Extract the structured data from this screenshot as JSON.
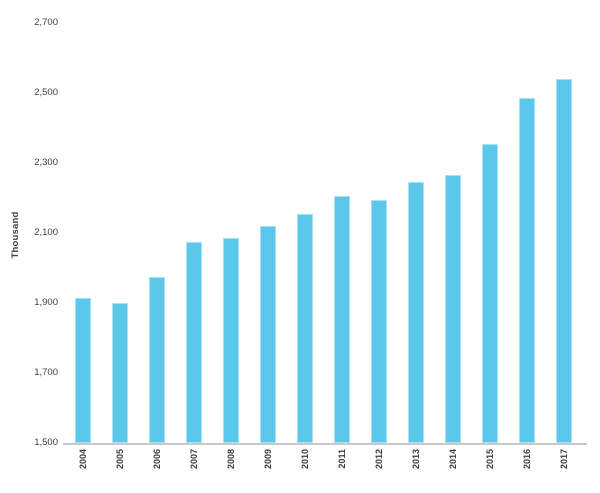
{
  "chart_data": {
    "type": "bar",
    "title": "",
    "xlabel": "",
    "ylabel": "Thousand",
    "categories": [
      "2004",
      "2005",
      "2006",
      "2007",
      "2008",
      "2009",
      "2010",
      "2011",
      "2012",
      "2013",
      "2014",
      "2015",
      "2016",
      "2017"
    ],
    "values": [
      1915,
      1900,
      1975,
      2075,
      2085,
      2120,
      2155,
      2205,
      2195,
      2245,
      2265,
      2355,
      2485,
      2540
    ],
    "ylim": [
      1500,
      2700
    ],
    "ytick_step": 200,
    "ytick_labels": [
      "1,500",
      "1,700",
      "1,900",
      "2,100",
      "2,300",
      "2,500",
      "2,700"
    ],
    "grid": false,
    "legend": null,
    "bar_color": "#5BC8EA",
    "bar_edge_color": "#A9E0F3",
    "axis_line_color": "#C8C8C8",
    "text_color": "#3F3F3F"
  }
}
